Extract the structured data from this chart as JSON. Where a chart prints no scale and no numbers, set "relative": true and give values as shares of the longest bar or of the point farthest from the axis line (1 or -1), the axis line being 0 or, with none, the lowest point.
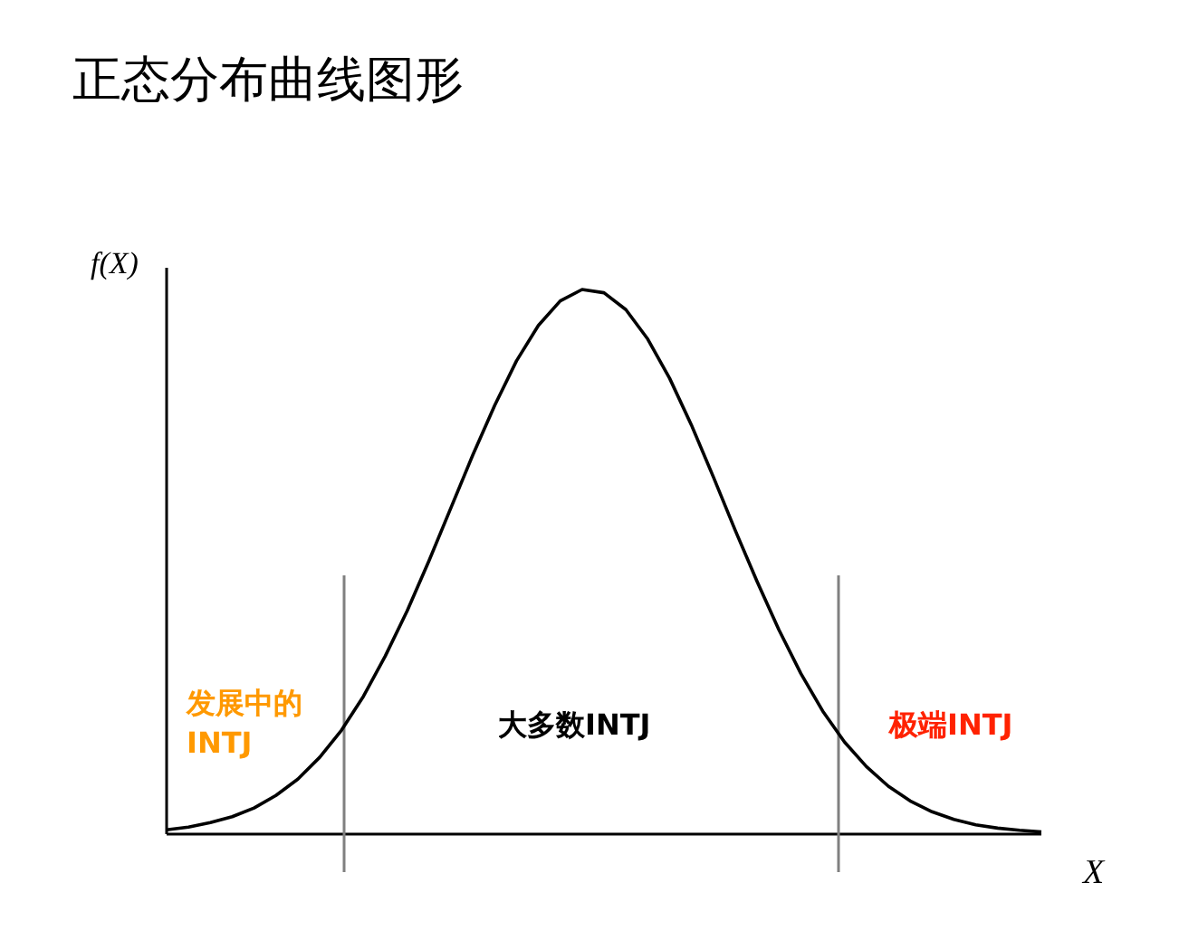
{
  "chart_data": {
    "type": "line",
    "title": "正态分布曲线图形",
    "xlabel": "X",
    "ylabel": "f(X)",
    "relative": true,
    "grid": false,
    "marker": "none",
    "line_style": "solid",
    "categories": [
      null,
      null,
      null,
      null,
      null,
      null,
      null,
      null,
      null,
      null,
      null,
      null,
      null,
      null,
      null,
      null,
      null,
      null,
      null,
      null,
      null,
      null,
      null,
      null,
      null,
      null,
      null,
      null,
      null,
      null,
      null,
      null,
      null,
      null,
      null,
      null,
      null,
      null,
      null,
      null,
      null
    ],
    "series": [
      {
        "color": "#000000",
        "values": [
          0.008,
          0.013,
          0.021,
          0.032,
          0.048,
          0.071,
          0.101,
          0.141,
          0.191,
          0.253,
          0.327,
          0.41,
          0.502,
          0.599,
          0.696,
          0.787,
          0.869,
          0.934,
          0.979,
          1,
          0.994,
          0.963,
          0.909,
          0.837,
          0.751,
          0.656,
          0.558,
          0.464,
          0.375,
          0.295,
          0.226,
          0.169,
          0.124,
          0.088,
          0.061,
          0.041,
          0.027,
          0.017,
          0.011,
          0.007,
          0.004
        ]
      }
    ],
    "annotations": [
      "发展中的\nINTJ",
      "大多数INTJ",
      "极端INTJ"
    ]
  }
}
